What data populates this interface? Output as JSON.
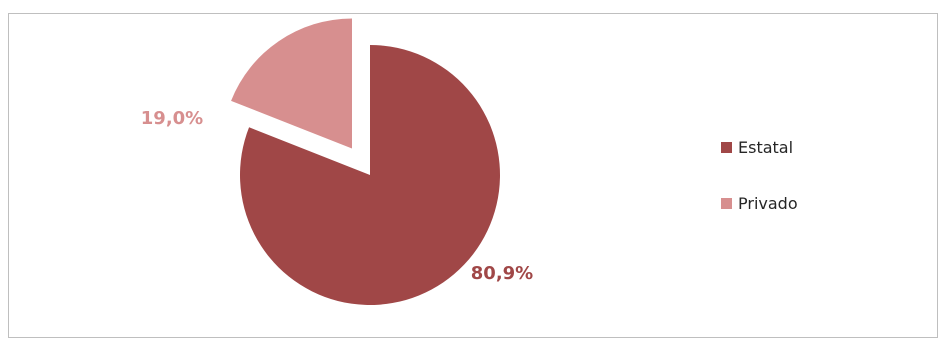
{
  "chart_data": {
    "type": "pie",
    "title": "",
    "slices": [
      {
        "label": "Estatal",
        "value": 80.9,
        "display": "80,9%",
        "color": "#a04747"
      },
      {
        "label": "Privado",
        "value": 19.0,
        "display": "19,0%",
        "color": "#d78f8f"
      }
    ],
    "legend_position": "right",
    "exploded_slice": "Privado"
  }
}
